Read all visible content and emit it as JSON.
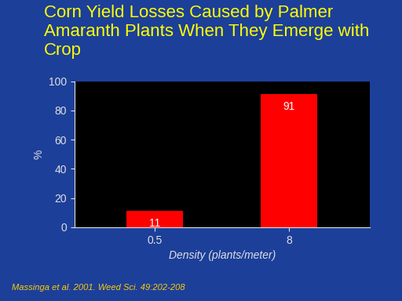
{
  "chart_data": {
    "type": "bar",
    "title": "Corn Yield Losses Caused by Palmer Amaranth Plants When They Emerge with Crop",
    "x_label": "Density (plants/meter)",
    "y_label": "%",
    "categories": [
      "0.5",
      "8"
    ],
    "values": [
      11,
      91
    ],
    "color": "#ff0000",
    "ylim": [
      0,
      100
    ],
    "yticks": [
      0,
      20,
      40,
      60,
      80,
      100
    ],
    "data_labels": true,
    "annotations": [
      "Massinga et al. 2001. Weed Sci. 49:202-208"
    ]
  }
}
